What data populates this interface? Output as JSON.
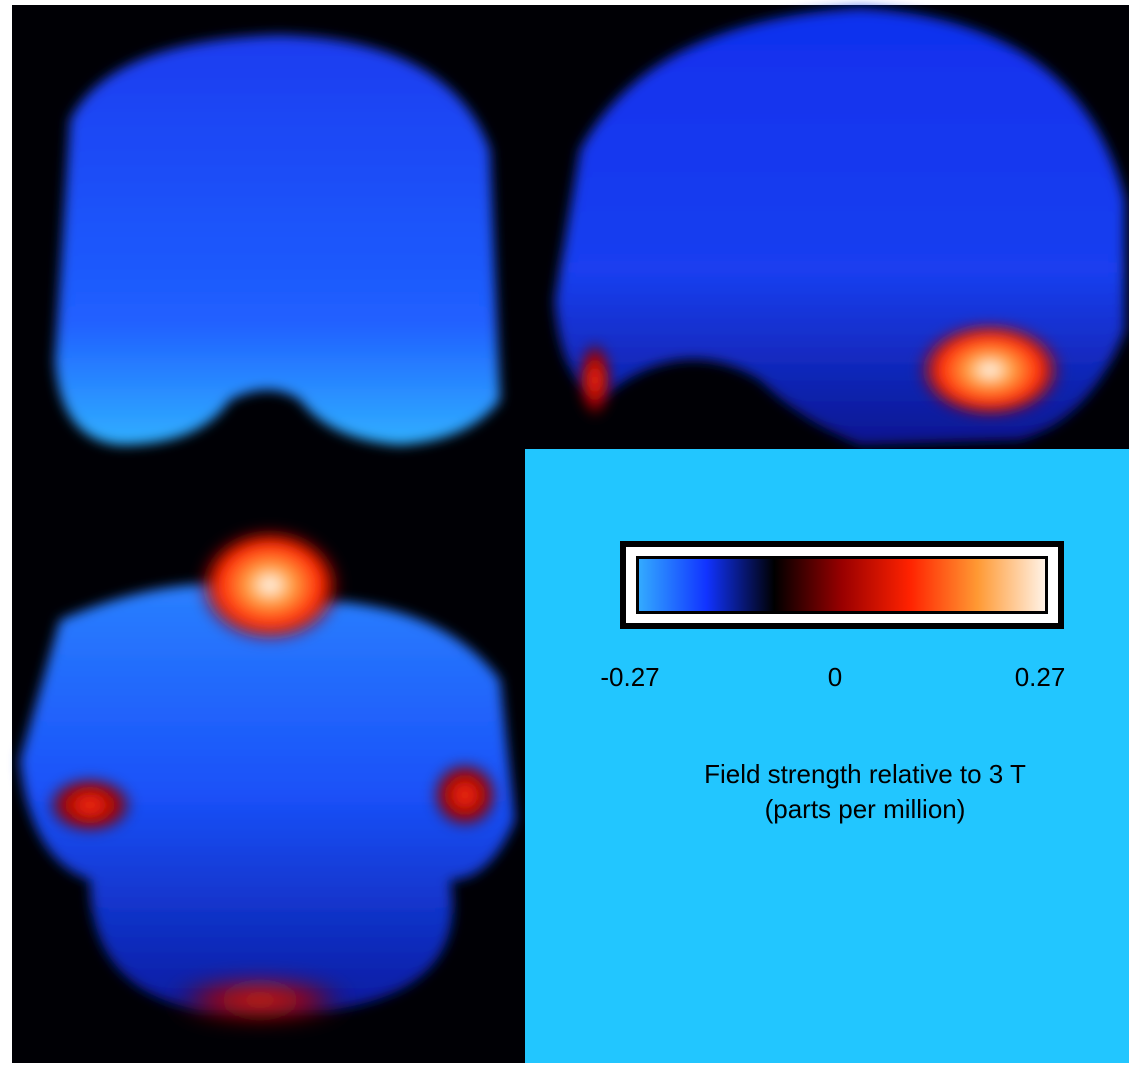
{
  "colorbar": {
    "lim": [
      -0.27,
      0.27
    ],
    "ticks": [
      -0.27,
      0,
      0.27
    ],
    "colors": [
      "#33aaff",
      "#1133ff",
      "#000000",
      "#990000",
      "#ff2200",
      "#ff9933",
      "#fff2e6"
    ],
    "label": [
      "Field strength relative to 3 T",
      "(parts per million)"
    ]
  }
}
